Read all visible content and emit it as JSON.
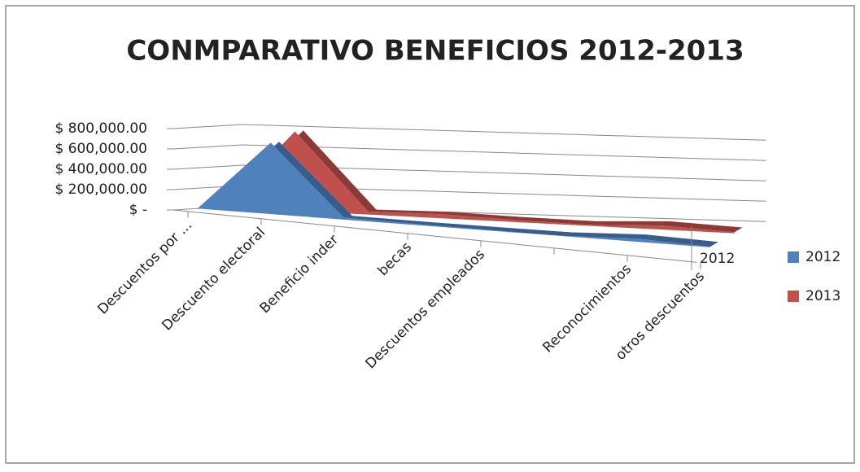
{
  "chart_data": {
    "type": "area3d",
    "title": "CONMPARATIVO BENEFICIOS 2012-2013",
    "categories": [
      "Descuentos por ...",
      "Descuento electoral",
      "Beneficio inder",
      "becas",
      "Descuentos empleados",
      null,
      "Reconocimientos",
      "otros descuentos"
    ],
    "series": [
      {
        "name": "2012",
        "color": "#4f81bd",
        "values": [
          0,
          700000,
          20000,
          10000,
          5000,
          3000,
          30000,
          5000
        ]
      },
      {
        "name": "2013",
        "color": "#c0504d",
        "values": [
          0,
          780000,
          30000,
          40000,
          20000,
          10000,
          40000,
          10000
        ]
      }
    ],
    "ylim": [
      0,
      800000
    ],
    "yticks": [
      {
        "value": 0,
        "label": "$ -"
      },
      {
        "value": 200000,
        "label": "$ 200,000.00"
      },
      {
        "value": 400000,
        "label": "$ 400,000.00"
      },
      {
        "value": 600000,
        "label": "$ 600,000.00"
      },
      {
        "value": 800000,
        "label": "$ 800,000.00"
      }
    ],
    "grid": true,
    "legend": "right"
  }
}
